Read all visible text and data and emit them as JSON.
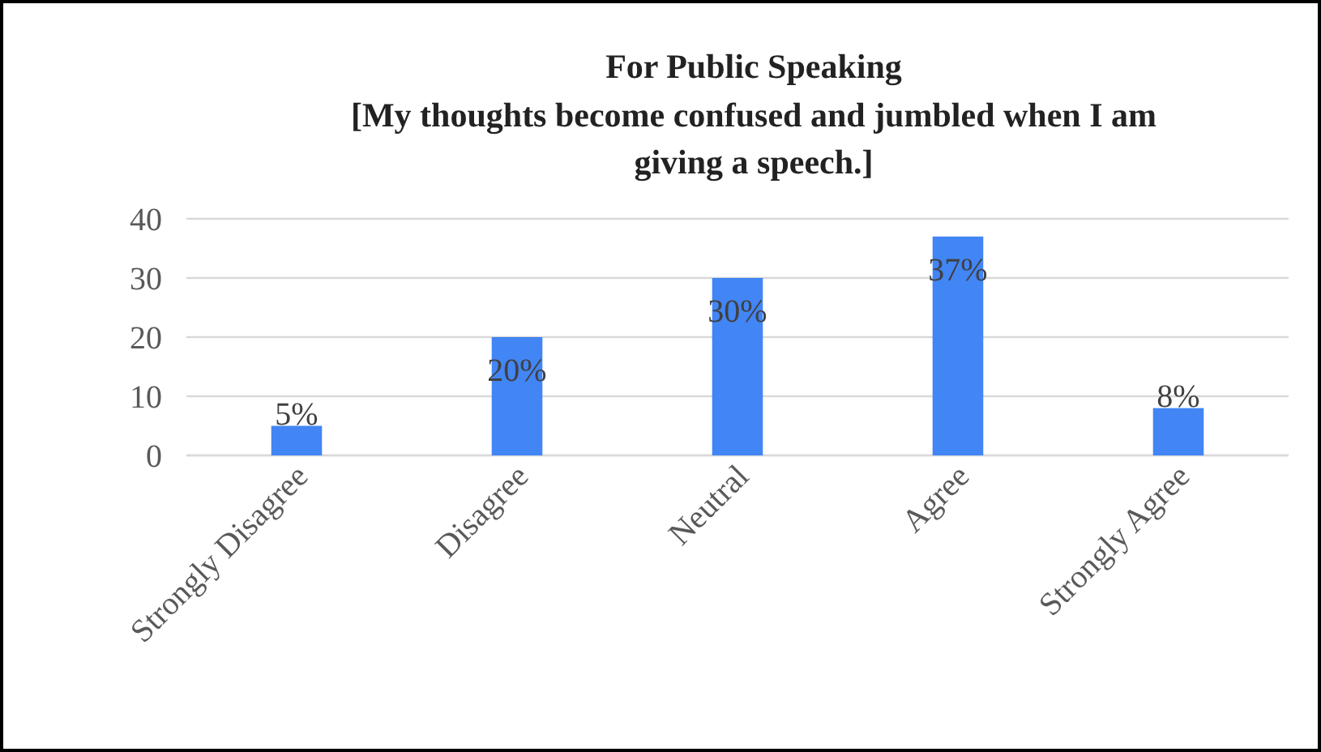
{
  "chart_data": {
    "type": "bar",
    "title": "For Public Speaking",
    "subtitle": "[My thoughts become confused and jumbled when I am giving a speech.]",
    "categories": [
      "Strongly Disagree",
      "Disagree",
      "Neutral",
      "Agree",
      "Strongly Agree"
    ],
    "values": [
      5,
      20,
      30,
      37,
      8
    ],
    "color": "#4285f4",
    "value_labels": [
      "5%",
      "20%",
      "30%",
      "37%",
      "8%"
    ],
    "ylim": [
      0,
      40
    ],
    "yticks": [
      0,
      10,
      20,
      30,
      40
    ],
    "grid": "y"
  }
}
